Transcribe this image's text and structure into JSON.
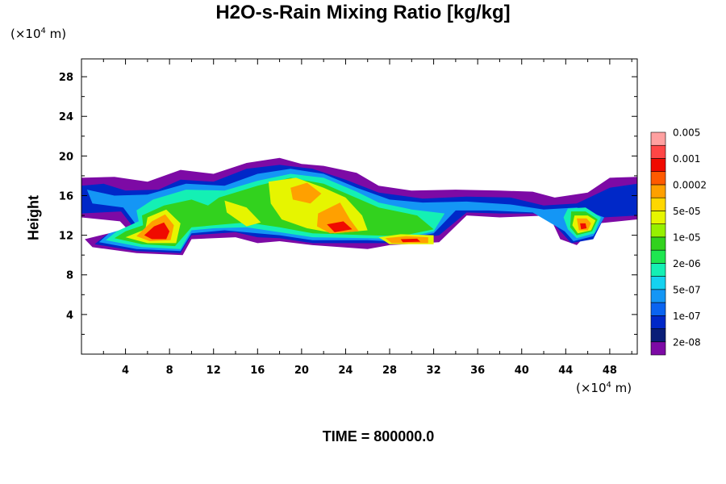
{
  "chart_data": {
    "type": "heatmap",
    "title": "H2O-s-Rain Mixing Ratio [kg/kg]",
    "ylabel": "Height",
    "xlabel": "",
    "x_unit_prefix": "(×10",
    "x_unit_exp": "4",
    "x_unit_suffix": " m)",
    "y_unit_prefix": "(×10",
    "y_unit_exp": "4",
    "y_unit_suffix": " m)",
    "xlim": [
      0,
      50.5
    ],
    "ylim": [
      0,
      29.8
    ],
    "x_ticks": [
      4,
      8,
      12,
      16,
      20,
      24,
      28,
      32,
      36,
      40,
      44,
      48
    ],
    "y_ticks": [
      4,
      8,
      12,
      16,
      20,
      24,
      28
    ],
    "time_label": "TIME = 800000.0",
    "colorbar": {
      "colors": [
        "#7d0aa5",
        "#0a1e78",
        "#0028c8",
        "#0a64f0",
        "#1496f5",
        "#14d2f0",
        "#14f0b4",
        "#1ee650",
        "#32d21e",
        "#96f000",
        "#e6f500",
        "#ffd700",
        "#ffa000",
        "#ff5a00",
        "#f00a00",
        "#ff4646",
        "#ffa0a0"
      ],
      "labels": [
        "2e-08",
        "1e-07",
        "5e-07",
        "2e-06",
        "1e-05",
        "5e-05",
        "0.0002",
        "0.001",
        "0.005"
      ]
    },
    "regions": [
      {
        "level": 0,
        "points": [
          [
            0,
            17.8
          ],
          [
            3,
            17.9
          ],
          [
            6,
            17.4
          ],
          [
            9,
            18.6
          ],
          [
            12,
            18.2
          ],
          [
            15,
            19.3
          ],
          [
            18,
            19.8
          ],
          [
            20,
            19.2
          ],
          [
            22,
            19.0
          ],
          [
            25,
            18.3
          ],
          [
            27,
            17.0
          ],
          [
            30,
            16.5
          ],
          [
            34,
            16.6
          ],
          [
            38,
            16.5
          ],
          [
            41,
            16.4
          ],
          [
            43,
            15.8
          ],
          [
            46,
            16.3
          ],
          [
            48,
            17.8
          ],
          [
            50.5,
            17.9
          ],
          [
            50.5,
            13.6
          ],
          [
            47,
            13.2
          ],
          [
            46,
            12.2
          ],
          [
            45,
            11.0
          ],
          [
            43.5,
            11.6
          ],
          [
            42.5,
            14.0
          ],
          [
            38,
            13.8
          ],
          [
            35,
            14.0
          ],
          [
            32.5,
            11.3
          ],
          [
            28,
            11.0
          ],
          [
            26,
            10.6
          ],
          [
            21,
            11.0
          ],
          [
            18,
            11.4
          ],
          [
            16,
            11.2
          ],
          [
            14,
            11.8
          ],
          [
            10,
            11.6
          ],
          [
            9.2,
            10.0
          ],
          [
            5,
            10.2
          ],
          [
            1,
            10.8
          ],
          [
            0.3,
            11.6
          ],
          [
            2.5,
            12.2
          ],
          [
            4.6,
            12.1
          ],
          [
            3.5,
            13.4
          ],
          [
            0,
            13.8
          ]
        ]
      },
      {
        "level": 2,
        "points": [
          [
            0,
            17.0
          ],
          [
            2,
            17.2
          ],
          [
            4,
            16.5
          ],
          [
            7,
            16.6
          ],
          [
            9,
            17.6
          ],
          [
            12,
            17.4
          ],
          [
            15,
            18.7
          ],
          [
            18,
            19.1
          ],
          [
            21,
            18.7
          ],
          [
            24,
            17.6
          ],
          [
            27,
            16.3
          ],
          [
            31,
            15.7
          ],
          [
            35,
            15.9
          ],
          [
            39,
            15.8
          ],
          [
            42,
            15.0
          ],
          [
            45,
            15.2
          ],
          [
            48,
            16.8
          ],
          [
            50.5,
            17.2
          ],
          [
            50.5,
            14.0
          ],
          [
            47.5,
            13.8
          ],
          [
            46.5,
            11.6
          ],
          [
            44.5,
            11.2
          ],
          [
            43.7,
            12.2
          ],
          [
            42,
            14.2
          ],
          [
            38,
            14.2
          ],
          [
            35,
            14.3
          ],
          [
            32.5,
            12.0
          ],
          [
            28,
            11.2
          ],
          [
            26,
            11.2
          ],
          [
            21,
            11.2
          ],
          [
            18,
            11.7
          ],
          [
            16,
            11.8
          ],
          [
            14,
            12.3
          ],
          [
            10,
            12.0
          ],
          [
            9,
            10.2
          ],
          [
            5,
            10.4
          ],
          [
            1.2,
            11.1
          ],
          [
            2.2,
            12.0
          ],
          [
            5,
            12.4
          ],
          [
            3.6,
            14.4
          ],
          [
            0,
            14.2
          ]
        ]
      },
      {
        "level": 4,
        "points": [
          [
            0.5,
            16.6
          ],
          [
            3,
            16.0
          ],
          [
            6,
            16.1
          ],
          [
            9.5,
            17.2
          ],
          [
            13,
            17.0
          ],
          [
            16,
            18.2
          ],
          [
            19,
            18.7
          ],
          [
            22,
            18.2
          ],
          [
            25,
            16.8
          ],
          [
            28,
            15.6
          ],
          [
            31,
            15.3
          ],
          [
            35,
            15.4
          ],
          [
            39,
            15.1
          ],
          [
            42,
            14.6
          ],
          [
            45,
            14.8
          ],
          [
            47.5,
            13.8
          ],
          [
            46.5,
            11.9
          ],
          [
            44.7,
            11.4
          ],
          [
            43.9,
            12.4
          ],
          [
            41,
            14.3
          ],
          [
            37,
            14.5
          ],
          [
            34,
            14.5
          ],
          [
            32,
            12.2
          ],
          [
            28,
            11.4
          ],
          [
            26,
            11.5
          ],
          [
            21,
            11.5
          ],
          [
            18,
            12.0
          ],
          [
            16,
            12.2
          ],
          [
            13,
            12.5
          ],
          [
            10,
            12.2
          ],
          [
            9,
            10.4
          ],
          [
            5,
            10.6
          ],
          [
            1.6,
            11.3
          ],
          [
            2.5,
            12.2
          ],
          [
            5,
            13.0
          ],
          [
            3.8,
            14.8
          ],
          [
            1,
            15.2
          ]
        ]
      },
      {
        "level": 6,
        "points": [
          [
            5,
            14.5
          ],
          [
            6.5,
            15.6
          ],
          [
            9.5,
            16.6
          ],
          [
            13,
            16.5
          ],
          [
            16,
            17.5
          ],
          [
            19,
            18.2
          ],
          [
            22,
            17.8
          ],
          [
            25,
            16.4
          ],
          [
            27,
            15.3
          ],
          [
            30,
            14.6
          ],
          [
            33,
            14.2
          ],
          [
            32,
            12.4
          ],
          [
            29,
            11.6
          ],
          [
            26,
            11.7
          ],
          [
            21,
            11.8
          ],
          [
            18,
            12.3
          ],
          [
            15,
            12.8
          ],
          [
            12,
            12.7
          ],
          [
            10,
            12.5
          ],
          [
            9,
            10.6
          ],
          [
            5.5,
            10.8
          ],
          [
            2.2,
            11.5
          ],
          [
            3.2,
            12.4
          ],
          [
            5.2,
            13.4
          ]
        ]
      },
      {
        "level": 6,
        "points": [
          [
            44.2,
            14.7
          ],
          [
            45.8,
            14.8
          ],
          [
            47.2,
            13.8
          ],
          [
            46.6,
            12.2
          ],
          [
            45,
            11.7
          ],
          [
            44.2,
            12.6
          ],
          [
            43.8,
            13.8
          ]
        ]
      },
      {
        "level": 8,
        "points": [
          [
            5.5,
            14.0
          ],
          [
            7.5,
            15.0
          ],
          [
            10,
            15.6
          ],
          [
            11.5,
            15.0
          ],
          [
            12.5,
            15.8
          ],
          [
            16,
            17.0
          ],
          [
            19,
            17.8
          ],
          [
            22,
            17.2
          ],
          [
            24.5,
            16.0
          ],
          [
            27,
            14.8
          ],
          [
            30.5,
            14.0
          ],
          [
            32,
            12.6
          ],
          [
            29,
            11.9
          ],
          [
            26,
            12.0
          ],
          [
            21,
            12.2
          ],
          [
            18,
            12.8
          ],
          [
            15,
            13.3
          ],
          [
            12,
            13.0
          ],
          [
            10,
            12.8
          ],
          [
            8.5,
            10.9
          ],
          [
            5.5,
            11.1
          ],
          [
            3.0,
            11.7
          ],
          [
            4.0,
            12.4
          ],
          [
            5.6,
            13.0
          ]
        ]
      },
      {
        "level": 8,
        "points": [
          [
            44.5,
            14.4
          ],
          [
            45.8,
            14.4
          ],
          [
            46.9,
            13.6
          ],
          [
            46.4,
            12.4
          ],
          [
            45.0,
            12.0
          ],
          [
            44.4,
            12.8
          ]
        ]
      },
      {
        "level": 10,
        "points": [
          [
            6,
            13.8
          ],
          [
            7.7,
            14.6
          ],
          [
            9,
            13.2
          ],
          [
            8.6,
            11.2
          ],
          [
            6,
            11.2
          ],
          [
            4,
            11.8
          ],
          [
            5.8,
            12.6
          ]
        ]
      },
      {
        "level": 10,
        "points": [
          [
            17,
            17.4
          ],
          [
            19.5,
            17.8
          ],
          [
            22,
            16.8
          ],
          [
            24,
            15.8
          ],
          [
            25.5,
            14.0
          ],
          [
            26,
            12.5
          ],
          [
            23,
            12.2
          ],
          [
            20.5,
            12.7
          ],
          [
            18.2,
            13.6
          ],
          [
            17.2,
            15.2
          ]
        ]
      },
      {
        "level": 10,
        "points": [
          [
            13,
            15.5
          ],
          [
            15,
            14.8
          ],
          [
            16.3,
            13.3
          ],
          [
            15,
            12.9
          ],
          [
            13.2,
            14.3
          ]
        ]
      },
      {
        "level": 10,
        "points": [
          [
            27,
            11.8
          ],
          [
            29,
            12.1
          ],
          [
            32,
            12.0
          ],
          [
            32,
            11.1
          ],
          [
            28,
            11.1
          ]
        ]
      },
      {
        "level": 10,
        "points": [
          [
            44.8,
            14.0
          ],
          [
            46.0,
            14.0
          ],
          [
            46.7,
            13.5
          ],
          [
            46.3,
            12.5
          ],
          [
            45.1,
            12.2
          ],
          [
            44.6,
            13.0
          ]
        ]
      },
      {
        "level": 12,
        "points": [
          [
            19,
            16.8
          ],
          [
            20.5,
            17.3
          ],
          [
            21.8,
            16.2
          ],
          [
            20.8,
            15.2
          ],
          [
            19.2,
            15.6
          ]
        ]
      },
      {
        "level": 12,
        "points": [
          [
            21.5,
            14.2
          ],
          [
            23.5,
            15.3
          ],
          [
            24.4,
            13.6
          ],
          [
            25.2,
            12.4
          ],
          [
            22.6,
            12.2
          ],
          [
            21.4,
            12.9
          ]
        ]
      },
      {
        "level": 12,
        "points": [
          [
            6.4,
            13.4
          ],
          [
            7.6,
            14.1
          ],
          [
            8.4,
            13.0
          ],
          [
            8.1,
            11.5
          ],
          [
            6.2,
            11.4
          ],
          [
            5,
            11.9
          ]
        ]
      },
      {
        "level": 12,
        "points": [
          [
            27.6,
            11.7
          ],
          [
            29.5,
            11.9
          ],
          [
            31.5,
            11.8
          ],
          [
            31.5,
            11.2
          ],
          [
            28.2,
            11.2
          ]
        ]
      },
      {
        "level": 12,
        "points": [
          [
            45.0,
            13.7
          ],
          [
            45.9,
            13.7
          ],
          [
            46.3,
            13.2
          ],
          [
            46.0,
            12.5
          ],
          [
            45.2,
            12.5
          ]
        ]
      },
      {
        "level": 14,
        "points": [
          [
            6.6,
            12.9
          ],
          [
            7.5,
            13.3
          ],
          [
            8.0,
            12.4
          ],
          [
            7.7,
            11.6
          ],
          [
            6.4,
            11.6
          ],
          [
            5.7,
            12.0
          ]
        ]
      },
      {
        "level": 14,
        "points": [
          [
            22.3,
            13.1
          ],
          [
            23.8,
            13.4
          ],
          [
            24.6,
            12.6
          ],
          [
            23.0,
            12.3
          ]
        ]
      },
      {
        "level": 14,
        "points": [
          [
            45.3,
            13.2
          ],
          [
            45.8,
            13.2
          ],
          [
            45.9,
            12.7
          ],
          [
            45.4,
            12.6
          ]
        ]
      },
      {
        "level": 14,
        "points": [
          [
            29.0,
            11.6
          ],
          [
            30.5,
            11.65
          ],
          [
            30.8,
            11.35
          ],
          [
            29.2,
            11.3
          ]
        ]
      }
    ]
  }
}
